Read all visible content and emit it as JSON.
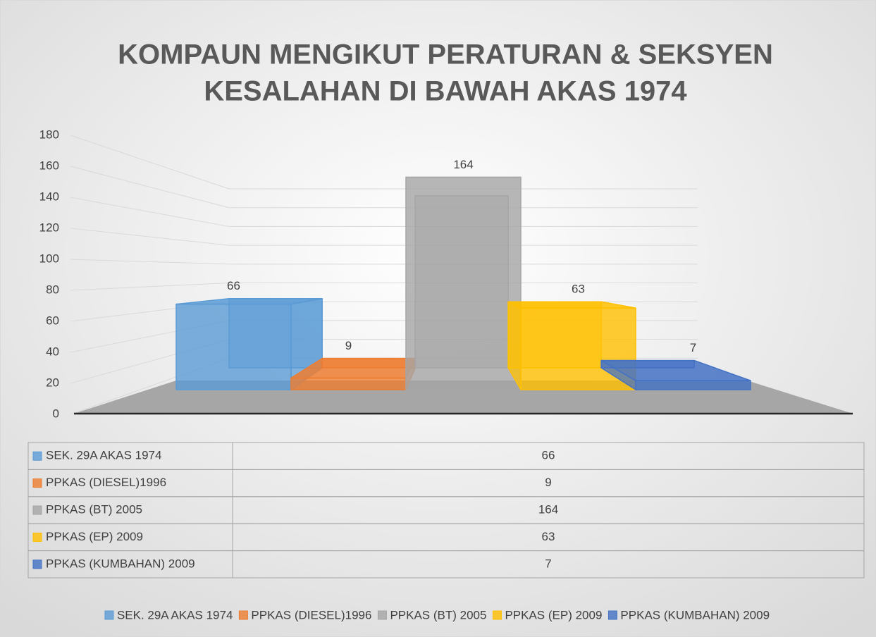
{
  "chart_data": {
    "type": "bar",
    "title": [
      "KOMPAUN MENGIKUT PERATURAN & SEKSYEN",
      "KESALAHAN DI BAWAH AKAS 1974"
    ],
    "categories": [
      null
    ],
    "series": [
      {
        "name": "SEK. 29A AKAS 1974",
        "color": "#5b9bd5",
        "values": [
          66
        ]
      },
      {
        "name": "PPKAS (DIESEL)1996",
        "color": "#ed7d31",
        "values": [
          9
        ]
      },
      {
        "name": "PPKAS (BT) 2005",
        "color": "#a5a5a5",
        "values": [
          164
        ]
      },
      {
        "name": "PPKAS (EP) 2009",
        "color": "#ffc000",
        "values": [
          63
        ]
      },
      {
        "name": "PPKAS (KUMBAHAN) 2009",
        "color": "#4472c4",
        "values": [
          7
        ]
      }
    ],
    "ylim": [
      0,
      180
    ],
    "yticks": [
      0,
      20,
      40,
      60,
      80,
      100,
      120,
      140,
      160,
      180
    ],
    "grid": true,
    "legend": "bottom",
    "data_table": true
  }
}
